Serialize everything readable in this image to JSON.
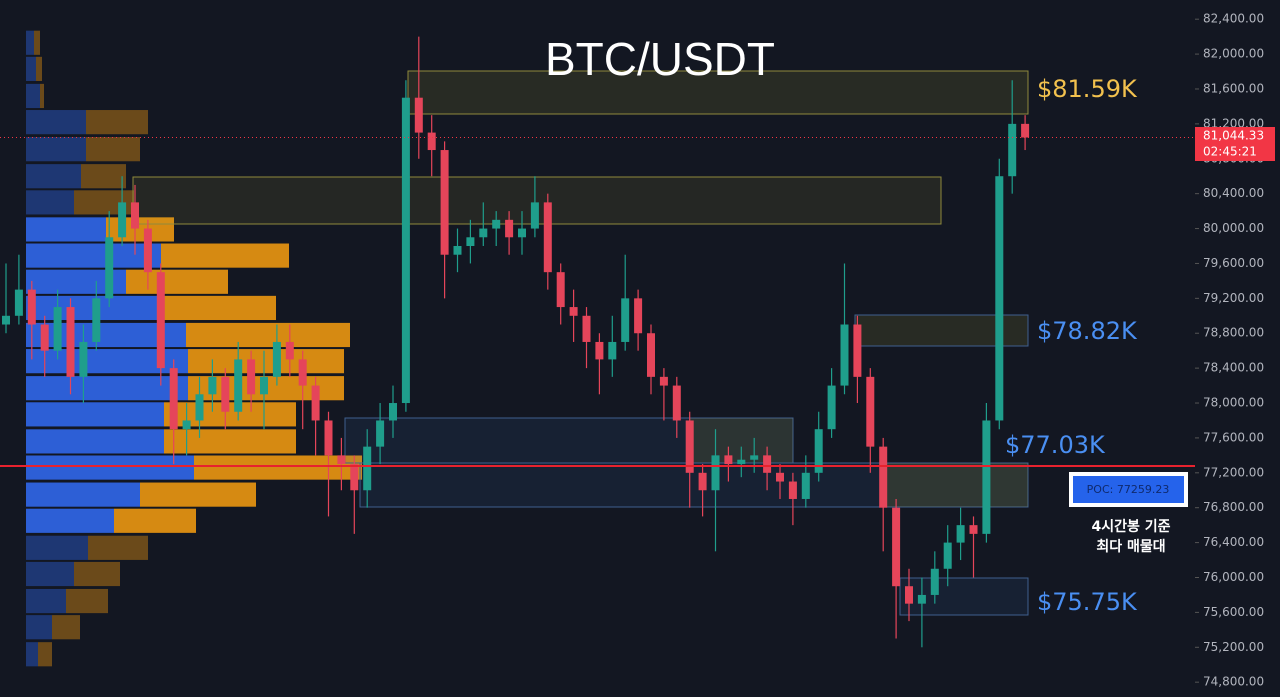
{
  "chart_data": {
    "type": "candlestick",
    "title": "BTC/USDT",
    "ylim": [
      74630,
      82620
    ],
    "yticks": [
      {
        "value": 82400,
        "label": "82,400.00"
      },
      {
        "value": 82000,
        "label": "82,000.00"
      },
      {
        "value": 81600,
        "label": "81,600.00"
      },
      {
        "value": 81200,
        "label": "81,200.00"
      },
      {
        "value": 80800,
        "label": "80,800.00"
      },
      {
        "value": 80400,
        "label": "80,400.00"
      },
      {
        "value": 80000,
        "label": "80,000.00"
      },
      {
        "value": 79600,
        "label": "79,600.00"
      },
      {
        "value": 79200,
        "label": "79,200.00"
      },
      {
        "value": 78800,
        "label": "78,800.00"
      },
      {
        "value": 78400,
        "label": "78,400.00"
      },
      {
        "value": 78000,
        "label": "78,000.00"
      },
      {
        "value": 77600,
        "label": "77,600.00"
      },
      {
        "value": 77200,
        "label": "77,200.00"
      },
      {
        "value": 76800,
        "label": "76,800.00"
      },
      {
        "value": 76400,
        "label": "76,400.00"
      },
      {
        "value": 76000,
        "label": "76,000.00"
      },
      {
        "value": 75600,
        "label": "75,600.00"
      },
      {
        "value": 75200,
        "label": "75,200.00"
      },
      {
        "value": 74800,
        "label": "74,800.00"
      }
    ],
    "up_color": "#1f9e8c",
    "down_color": "#e5455a",
    "candles": [
      [
        78900,
        79600,
        78800,
        79000
      ],
      [
        79000,
        79700,
        78900,
        79300
      ],
      [
        79300,
        79400,
        78500,
        78900
      ],
      [
        78900,
        79000,
        78300,
        78600
      ],
      [
        78600,
        79300,
        78500,
        79100
      ],
      [
        79100,
        79200,
        78100,
        78300
      ],
      [
        78300,
        78900,
        78000,
        78700
      ],
      [
        78700,
        79400,
        78600,
        79200
      ],
      [
        79200,
        80200,
        79100,
        79900
      ],
      [
        79900,
        80600,
        79800,
        80300
      ],
      [
        80300,
        80500,
        79700,
        80000
      ],
      [
        80000,
        80100,
        79300,
        79500
      ],
      [
        79500,
        79600,
        78200,
        78400
      ],
      [
        78400,
        78500,
        77300,
        77700
      ],
      [
        77700,
        78000,
        77400,
        77800
      ],
      [
        77800,
        78300,
        77600,
        78100
      ],
      [
        78100,
        78500,
        77900,
        78300
      ],
      [
        78300,
        78400,
        77700,
        77900
      ],
      [
        77900,
        78700,
        77800,
        78500
      ],
      [
        78500,
        78600,
        77900,
        78100
      ],
      [
        78100,
        78600,
        77700,
        78300
      ],
      [
        78300,
        78900,
        78200,
        78700
      ],
      [
        78700,
        78900,
        78300,
        78500
      ],
      [
        78500,
        78600,
        77700,
        78200
      ],
      [
        78200,
        78300,
        77400,
        77800
      ],
      [
        77800,
        77900,
        76700,
        77400
      ],
      [
        77400,
        77600,
        77000,
        77300
      ],
      [
        77300,
        77400,
        76500,
        77000
      ],
      [
        77000,
        77700,
        76800,
        77500
      ],
      [
        77500,
        78000,
        77300,
        77800
      ],
      [
        77800,
        78200,
        77600,
        78000
      ],
      [
        78000,
        81700,
        77900,
        81500
      ],
      [
        81500,
        82200,
        80800,
        81100
      ],
      [
        81100,
        81300,
        80600,
        80900
      ],
      [
        80900,
        81000,
        79200,
        79700
      ],
      [
        79700,
        80000,
        79500,
        79800
      ],
      [
        79800,
        80100,
        79600,
        79900
      ],
      [
        79900,
        80300,
        79800,
        80000
      ],
      [
        80000,
        80200,
        79800,
        80100
      ],
      [
        80100,
        80200,
        79700,
        79900
      ],
      [
        79900,
        80200,
        79700,
        80000
      ],
      [
        80000,
        80600,
        79900,
        80300
      ],
      [
        80300,
        80400,
        79300,
        79500
      ],
      [
        79500,
        79600,
        78900,
        79100
      ],
      [
        79100,
        79300,
        78700,
        79000
      ],
      [
        79000,
        79100,
        78400,
        78700
      ],
      [
        78700,
        78800,
        78100,
        78500
      ],
      [
        78500,
        79000,
        78300,
        78700
      ],
      [
        78700,
        79700,
        78600,
        79200
      ],
      [
        79200,
        79300,
        78600,
        78800
      ],
      [
        78800,
        78900,
        78100,
        78300
      ],
      [
        78300,
        78400,
        77800,
        78200
      ],
      [
        78200,
        78300,
        77600,
        77800
      ],
      [
        77800,
        77900,
        76800,
        77200
      ],
      [
        77200,
        77300,
        76700,
        77000
      ],
      [
        77000,
        77700,
        76300,
        77400
      ],
      [
        77400,
        77500,
        77100,
        77300
      ],
      [
        77300,
        77500,
        77150,
        77350
      ],
      [
        77350,
        77600,
        77200,
        77400
      ],
      [
        77400,
        77500,
        77000,
        77200
      ],
      [
        77200,
        77300,
        76900,
        77100
      ],
      [
        77100,
        77200,
        76600,
        76900
      ],
      [
        76900,
        77400,
        76800,
        77200
      ],
      [
        77200,
        77900,
        77100,
        77700
      ],
      [
        77700,
        78400,
        77600,
        78200
      ],
      [
        78200,
        79600,
        78100,
        78900
      ],
      [
        78900,
        79000,
        78000,
        78300
      ],
      [
        78300,
        78400,
        77200,
        77500
      ],
      [
        77500,
        77600,
        76300,
        76800
      ],
      [
        76800,
        76900,
        75300,
        75900
      ],
      [
        75900,
        76100,
        75500,
        75700
      ],
      [
        75700,
        76000,
        75200,
        75800
      ],
      [
        75800,
        76300,
        75700,
        76100
      ],
      [
        76100,
        76600,
        75900,
        76400
      ],
      [
        76400,
        76800,
        76200,
        76600
      ],
      [
        76600,
        76700,
        76000,
        76500
      ],
      [
        76500,
        78000,
        76400,
        77800
      ],
      [
        77800,
        80800,
        77700,
        80600
      ],
      [
        80600,
        81700,
        80400,
        81200
      ],
      [
        81200,
        81300,
        80900,
        81044
      ]
    ],
    "volume_profile": {
      "prices": [
        82130,
        81830,
        81520,
        81220,
        80910,
        80600,
        80300,
        79990,
        79690,
        79390,
        79090,
        78780,
        78480,
        78170,
        77870,
        77560,
        77260,
        76950,
        76650,
        76340,
        76040,
        75730,
        75430,
        75120
      ],
      "buy": [
        8,
        10,
        14,
        60,
        60,
        55,
        48,
        80,
        135,
        100,
        132,
        160,
        162,
        162,
        138,
        138,
        168,
        114,
        88,
        62,
        48,
        40,
        26,
        12
      ],
      "sell": [
        6,
        6,
        4,
        62,
        54,
        45,
        60,
        68,
        128,
        102,
        118,
        164,
        156,
        156,
        132,
        132,
        168,
        116,
        82,
        60,
        46,
        42,
        28,
        14
      ],
      "buy_color": "#2d5fd6",
      "sell_color": "#d68a12"
    },
    "annotations": [
      "$81.59K",
      "$78.82K",
      "$77.03K",
      "$75.75K"
    ],
    "poc_label": "POC: 77259.23",
    "note": [
      "4시간봉 기준",
      "최다 매물대"
    ],
    "last_price_label": "81,044.33",
    "countdown": "02:45:21"
  }
}
